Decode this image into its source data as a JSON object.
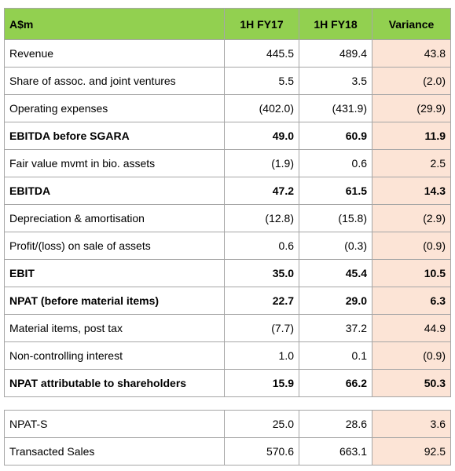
{
  "table": {
    "header": [
      "A$m",
      "1H FY17",
      "1H FY18",
      "Variance"
    ],
    "rows": [
      {
        "cells": [
          "Revenue",
          "445.5",
          "489.4",
          "43.8"
        ],
        "bold": false
      },
      {
        "cells": [
          "Share of assoc. and joint ventures",
          "5.5",
          "3.5",
          "(2.0)"
        ],
        "bold": false
      },
      {
        "cells": [
          "Operating expenses",
          "(402.0)",
          "(431.9)",
          "(29.9)"
        ],
        "bold": false
      },
      {
        "cells": [
          "EBITDA before SGARA",
          "49.0",
          "60.9",
          "11.9"
        ],
        "bold": true
      },
      {
        "cells": [
          "Fair value mvmt in bio. assets",
          "(1.9)",
          "0.6",
          "2.5"
        ],
        "bold": false
      },
      {
        "cells": [
          "EBITDA",
          "47.2",
          "61.5",
          "14.3"
        ],
        "bold": true
      },
      {
        "cells": [
          "Depreciation & amortisation",
          "(12.8)",
          "(15.8)",
          "(2.9)"
        ],
        "bold": false
      },
      {
        "cells": [
          "Profit/(loss) on sale of assets",
          "0.6",
          "(0.3)",
          "(0.9)"
        ],
        "bold": false
      },
      {
        "cells": [
          "EBIT",
          "35.0",
          "45.4",
          "10.5"
        ],
        "bold": true
      },
      {
        "cells": [
          "NPAT (before material items)",
          "22.7",
          "29.0",
          "6.3"
        ],
        "bold": true
      },
      {
        "cells": [
          "Material items, post tax",
          "(7.7)",
          "37.2",
          "44.9"
        ],
        "bold": false
      },
      {
        "cells": [
          "Non-controlling interest",
          "1.0",
          "0.1",
          "(0.9)"
        ],
        "bold": false
      },
      {
        "cells": [
          "NPAT attributable to shareholders",
          "15.9",
          "66.2",
          "50.3"
        ],
        "bold": true
      }
    ]
  },
  "table2": {
    "rows": [
      {
        "cells": [
          "NPAT-S",
          "25.0",
          "28.6",
          "3.6"
        ],
        "bold": false
      },
      {
        "cells": [
          "Transacted Sales",
          "570.6",
          "663.1",
          "92.5"
        ],
        "bold": false
      }
    ]
  }
}
